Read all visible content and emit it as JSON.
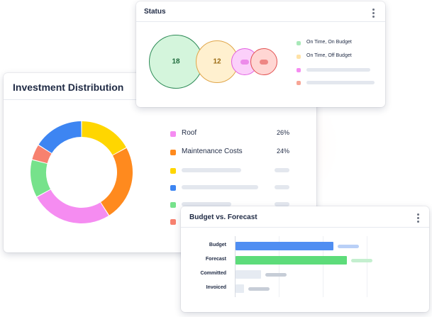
{
  "investment": {
    "title": "Investment Distribution",
    "legend": [
      {
        "label": "Roof",
        "percent": "26%",
        "color": "#f58cf1"
      },
      {
        "label": "Maintenance Costs",
        "percent": "24%",
        "color": "#ff8a1e"
      },
      {
        "label": "",
        "percent": "",
        "color": "#ffd600"
      },
      {
        "label": "",
        "percent": "",
        "color": "#3d85f2"
      },
      {
        "label": "",
        "percent": "",
        "color": "#76e28b"
      },
      {
        "label": "",
        "percent": "",
        "color": "#f7816f"
      }
    ],
    "chart_data": {
      "type": "pie",
      "slices": [
        {
          "label": "",
          "value": 17,
          "color": "#ffd600"
        },
        {
          "label": "Maintenance Costs",
          "value": 24,
          "color": "#ff8a1e"
        },
        {
          "label": "Roof",
          "value": 26,
          "color": "#f58cf1"
        },
        {
          "label": "",
          "value": 12,
          "color": "#76e28b"
        },
        {
          "label": "",
          "value": 5,
          "color": "#f7816f"
        },
        {
          "label": "",
          "value": 16,
          "color": "#3d85f2"
        }
      ]
    }
  },
  "status": {
    "title": "Status",
    "bubbles": [
      {
        "value": "18",
        "fill": "#d4f5dc",
        "stroke": "#2e8b57",
        "text_color": "#1e6b3c"
      },
      {
        "value": "12",
        "fill": "#fff0cf",
        "stroke": "#e0a64a",
        "text_color": "#9a6a12"
      },
      {
        "value": "",
        "fill": "#fbd0fa",
        "stroke": "#e25ee0",
        "text_color": "#c04cbf"
      },
      {
        "value": "",
        "fill": "#ffd6d3",
        "stroke": "#e25050",
        "text_color": "#d04848"
      }
    ],
    "legend": [
      {
        "label": "On Time, On Budget",
        "color": "#a8e8b8"
      },
      {
        "label": "On Time, Off Budget",
        "color": "#ffe2a6"
      },
      {
        "label": "",
        "color": "#f58cf1"
      },
      {
        "label": "",
        "color": "#f7a595"
      }
    ]
  },
  "budget": {
    "title": "Budget vs. Forecast",
    "chart_data": {
      "type": "bar",
      "orientation": "horizontal",
      "categories": [
        "Budget",
        "Forecast",
        "Committed",
        "Invoiced"
      ],
      "values": [
        72,
        82,
        19,
        6
      ],
      "colors": [
        "#4f8ef2",
        "#5ddc7a",
        "#e6ebf2",
        "#e6ebf2"
      ],
      "pill_colors": [
        "#b9d0f7",
        "#c4efcf",
        "#c7cdd7",
        "#c7cdd7"
      ],
      "xlim": [
        0,
        120
      ]
    }
  }
}
